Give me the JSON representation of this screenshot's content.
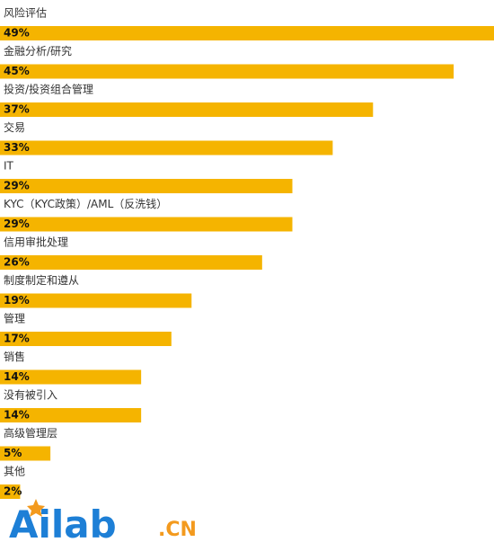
{
  "chart_data": {
    "type": "bar",
    "orientation": "horizontal",
    "categories": [
      "风险评估",
      "金融分析/研究",
      "投资/投资组合管理",
      "交易",
      "IT",
      "KYC（KYC政策）/AML（反洗钱）",
      "信用审批处理",
      "制度制定和遵从",
      "管理",
      "销售",
      "没有被引入",
      "高级管理层",
      "其他"
    ],
    "values": [
      49,
      45,
      37,
      33,
      29,
      29,
      26,
      19,
      17,
      14,
      14,
      5,
      2
    ],
    "value_labels": [
      "49%",
      "45%",
      "37%",
      "33%",
      "29%",
      "29%",
      "26%",
      "19%",
      "17%",
      "14%",
      "14%",
      "5%",
      "2%"
    ],
    "color": "#f5b400"
  },
  "logo": {
    "name": "Ailab",
    "suffix": ".CN"
  }
}
